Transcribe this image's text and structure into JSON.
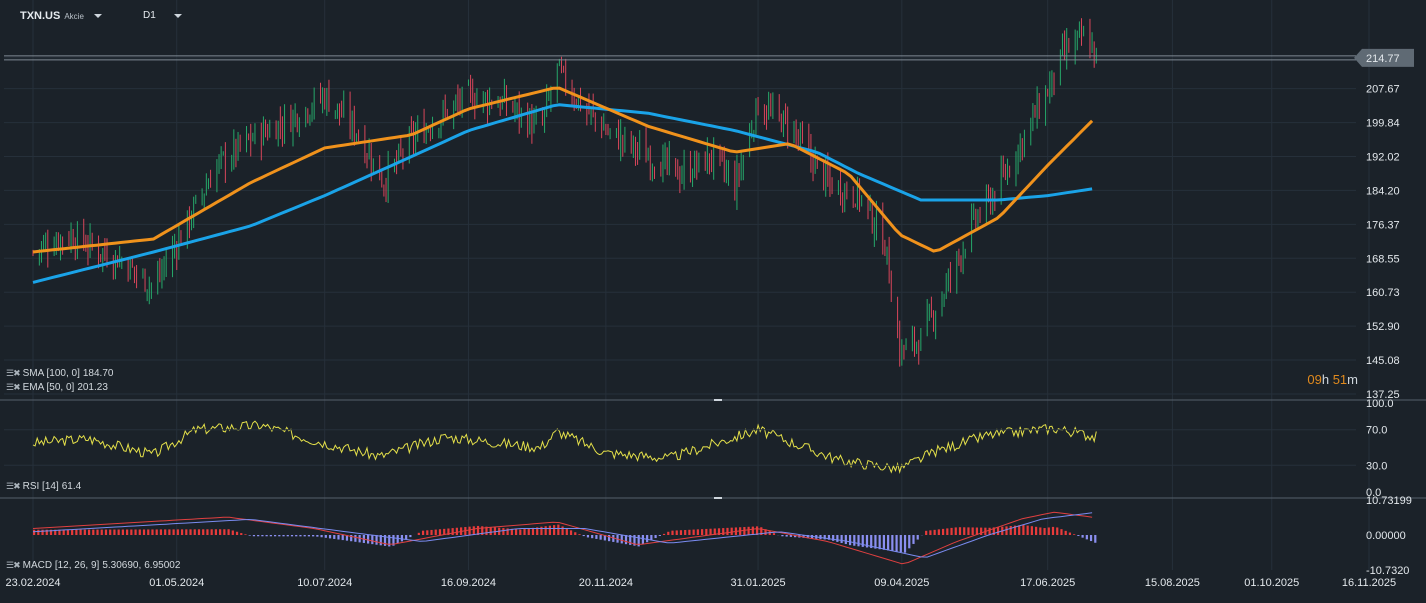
{
  "header": {
    "symbol": "TXN.US",
    "instrument_type": "Akcie",
    "timeframe": "D1"
  },
  "countdown": {
    "hours": "09",
    "h": "h",
    "minutes": "51",
    "m": "m"
  },
  "indicators": {
    "sma": {
      "label": "SMA [100, 0]",
      "value": "184.70",
      "color": "#1aa3e8"
    },
    "ema": {
      "label": "EMA [50, 0]",
      "value": "201.23",
      "color": "#f0921c"
    },
    "rsi": {
      "label": "RSI [14]",
      "value": "61.4",
      "color": "#e4e04a"
    },
    "macd": {
      "label": "MACD [12, 26, 9]",
      "value": "5.30690,",
      "signal_value": "6.95002"
    }
  },
  "colors": {
    "up": "#26a86a",
    "down": "#d8465a",
    "bg": "#1b2229",
    "grid": "#26303a",
    "macd_hist_up": "#e83b3b",
    "macd_hist_down": "#8b8ff0"
  },
  "chart_data": {
    "type": "candlestick",
    "price_axis_ticks": [
      "214.77",
      "207.67",
      "199.84",
      "192.02",
      "184.20",
      "176.37",
      "168.55",
      "160.73",
      "152.90",
      "145.08",
      "137.25"
    ],
    "last_price": "214.77",
    "x_tick_labels": [
      "23.02.2024",
      "01.05.2024",
      "10.07.2024",
      "16.09.2024",
      "20.11.2024",
      "31.01.2025",
      "09.04.2025",
      "17.06.2025",
      "15.08.2025",
      "01.10.2025",
      "16.11.2025"
    ],
    "ylim": [
      137.25,
      221.2
    ],
    "price_path": [
      [
        "2024-02-23",
        170
      ],
      [
        "2024-03-10",
        174
      ],
      [
        "2024-04-05",
        168
      ],
      [
        "2024-04-20",
        162
      ],
      [
        "2024-05-01",
        172
      ],
      [
        "2024-05-20",
        190
      ],
      [
        "2024-06-05",
        196
      ],
      [
        "2024-06-25",
        201
      ],
      [
        "2024-07-10",
        206
      ],
      [
        "2024-07-25",
        198
      ],
      [
        "2024-08-07",
        186
      ],
      [
        "2024-08-20",
        196
      ],
      [
        "2024-09-05",
        202
      ],
      [
        "2024-09-16",
        206
      ],
      [
        "2024-10-05",
        204
      ],
      [
        "2024-10-20",
        198
      ],
      [
        "2024-10-28",
        212
      ],
      [
        "2024-11-05",
        206
      ],
      [
        "2024-11-20",
        198
      ],
      [
        "2024-12-10",
        192
      ],
      [
        "2024-12-25",
        188
      ],
      [
        "2025-01-10",
        192
      ],
      [
        "2025-01-20",
        185
      ],
      [
        "2025-01-31",
        204
      ],
      [
        "2025-02-15",
        199
      ],
      [
        "2025-03-05",
        186
      ],
      [
        "2025-03-20",
        183
      ],
      [
        "2025-04-01",
        172
      ],
      [
        "2025-04-08",
        147
      ],
      [
        "2025-04-18",
        150
      ],
      [
        "2025-04-30",
        162
      ],
      [
        "2025-05-12",
        176
      ],
      [
        "2025-05-25",
        185
      ],
      [
        "2025-06-05",
        196
      ],
      [
        "2025-06-17",
        207
      ],
      [
        "2025-06-25",
        216
      ],
      [
        "2025-07-05",
        220
      ],
      [
        "2025-07-10",
        215
      ]
    ],
    "ema_path": [
      [
        "2024-02-23",
        170
      ],
      [
        "2024-04-20",
        173
      ],
      [
        "2024-06-05",
        186
      ],
      [
        "2024-07-10",
        194
      ],
      [
        "2024-08-20",
        197
      ],
      [
        "2024-09-16",
        203
      ],
      [
        "2024-10-28",
        208
      ],
      [
        "2024-12-10",
        199
      ],
      [
        "2025-01-20",
        193
      ],
      [
        "2025-02-15",
        195
      ],
      [
        "2025-03-15",
        188
      ],
      [
        "2025-04-08",
        174
      ],
      [
        "2025-04-25",
        170
      ],
      [
        "2025-05-25",
        178
      ],
      [
        "2025-06-17",
        190
      ],
      [
        "2025-07-10",
        201.23
      ]
    ],
    "sma_path": [
      [
        "2024-02-23",
        163
      ],
      [
        "2024-04-20",
        170
      ],
      [
        "2024-06-05",
        176
      ],
      [
        "2024-07-10",
        183
      ],
      [
        "2024-08-20",
        192
      ],
      [
        "2024-09-16",
        198
      ],
      [
        "2024-10-28",
        204
      ],
      [
        "2024-12-10",
        202
      ],
      [
        "2025-01-20",
        198
      ],
      [
        "2025-02-28",
        193
      ],
      [
        "2025-03-20",
        188
      ],
      [
        "2025-04-18",
        182
      ],
      [
        "2025-05-25",
        182
      ],
      [
        "2025-06-17",
        183
      ],
      [
        "2025-07-10",
        184.7
      ]
    ],
    "rsi": {
      "ticks": [
        "100.0",
        "70.0",
        "30.0",
        "0.0"
      ],
      "last": 61.4,
      "path": [
        [
          "2024-02-23",
          55
        ],
        [
          "2024-03-20",
          60
        ],
        [
          "2024-04-20",
          42
        ],
        [
          "2024-05-10",
          70
        ],
        [
          "2024-06-10",
          75
        ],
        [
          "2024-07-05",
          58
        ],
        [
          "2024-08-05",
          40
        ],
        [
          "2024-09-05",
          62
        ],
        [
          "2024-10-20",
          50
        ],
        [
          "2024-10-28",
          68
        ],
        [
          "2024-11-20",
          44
        ],
        [
          "2024-12-20",
          38
        ],
        [
          "2025-01-31",
          70
        ],
        [
          "2025-03-10",
          36
        ],
        [
          "2025-04-08",
          26
        ],
        [
          "2025-04-25",
          46
        ],
        [
          "2025-05-20",
          64
        ],
        [
          "2025-06-20",
          72
        ],
        [
          "2025-07-10",
          62
        ]
      ]
    },
    "macd": {
      "ticks": [
        "10.73199",
        "0.00000",
        "-10.7320"
      ],
      "last_macd": 5.3069,
      "last_signal": 6.95002,
      "path": [
        [
          "2024-02-23",
          2
        ],
        [
          "2024-05-25",
          5.5
        ],
        [
          "2024-07-05",
          2
        ],
        [
          "2024-08-10",
          -3
        ],
        [
          "2024-09-20",
          2
        ],
        [
          "2024-10-28",
          4
        ],
        [
          "2024-12-05",
          -3
        ],
        [
          "2025-01-31",
          2
        ],
        [
          "2025-03-05",
          -2
        ],
        [
          "2025-04-10",
          -9
        ],
        [
          "2025-05-05",
          -2
        ],
        [
          "2025-06-05",
          5
        ],
        [
          "2025-06-20",
          7
        ],
        [
          "2025-07-10",
          5.3
        ]
      ],
      "signal_path": [
        [
          "2024-02-23",
          1
        ],
        [
          "2024-06-05",
          4.8
        ],
        [
          "2024-07-20",
          1
        ],
        [
          "2024-08-25",
          -2
        ],
        [
          "2024-10-10",
          2
        ],
        [
          "2024-11-10",
          2
        ],
        [
          "2024-12-20",
          -2.5
        ],
        [
          "2025-02-10",
          1
        ],
        [
          "2025-03-15",
          -2
        ],
        [
          "2025-04-20",
          -7
        ],
        [
          "2025-05-20",
          0
        ],
        [
          "2025-06-15",
          5
        ],
        [
          "2025-07-10",
          6.95
        ]
      ]
    }
  }
}
